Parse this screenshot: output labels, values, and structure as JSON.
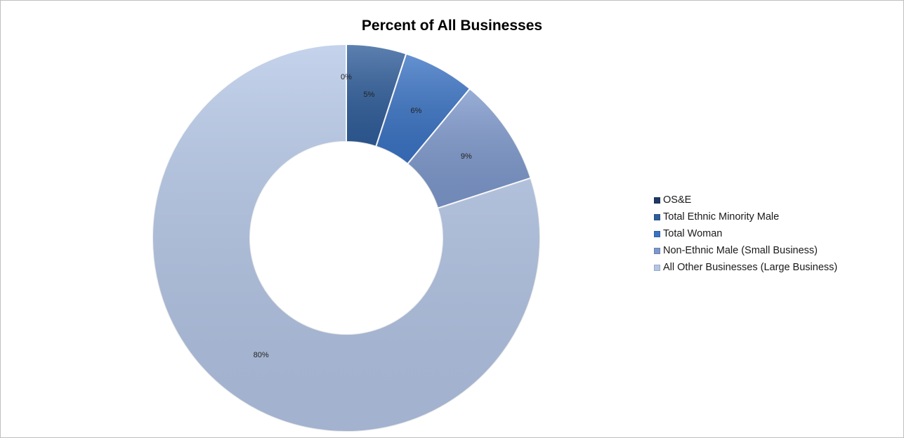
{
  "chart_data": {
    "type": "pie",
    "variant": "doughnut",
    "title": "Percent of All Businesses",
    "categories": [
      "OS&E",
      "Total Ethnic Minority Male",
      "Total Woman",
      "Non-Ethnic Male (Small Business)",
      "All Other Businesses (Large Business)"
    ],
    "values": [
      0,
      5,
      6,
      9,
      80
    ],
    "data_labels": [
      "0%",
      "5%",
      "6%",
      "9%",
      "80%"
    ],
    "colors": [
      "#1f3864",
      "#2f5d9a",
      "#3a73c4",
      "#7d98cc",
      "#b4c6e6"
    ],
    "legend_position": "right"
  }
}
